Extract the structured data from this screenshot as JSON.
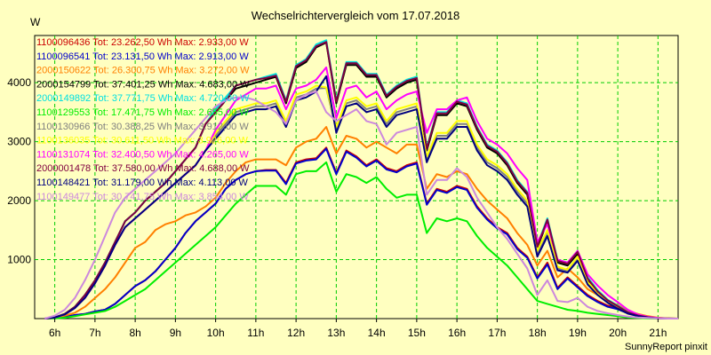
{
  "chart_data": {
    "type": "line",
    "title": "Wechselrichtervergleich vom 17.07.2018",
    "ylabel": "W",
    "footer": "SunnyReport pinxit",
    "xlim": [
      5.5,
      21.5
    ],
    "ylim": [
      0,
      4800
    ],
    "x_ticks": [
      6,
      7,
      8,
      9,
      10,
      11,
      12,
      13,
      14,
      15,
      16,
      17,
      18,
      19,
      20,
      21
    ],
    "x_tick_labels": [
      "6h",
      "7h",
      "8h",
      "9h",
      "10h",
      "11h",
      "12h",
      "13h",
      "14h",
      "15h",
      "16h",
      "17h",
      "18h",
      "19h",
      "20h",
      "21h"
    ],
    "y_ticks": [
      1000,
      2000,
      3000,
      4000
    ],
    "y_tick_labels": [
      "1000",
      "2000",
      "3000",
      "4000"
    ],
    "grid": true,
    "legend_position": "top-left",
    "x": [
      5.75,
      6,
      6.25,
      6.5,
      6.75,
      7,
      7.25,
      7.5,
      7.75,
      8,
      8.25,
      8.5,
      8.75,
      9,
      9.25,
      9.5,
      9.75,
      10,
      10.25,
      10.5,
      10.75,
      11,
      11.25,
      11.5,
      11.75,
      12,
      12.25,
      12.5,
      12.75,
      13,
      13.25,
      13.5,
      13.75,
      14,
      14.25,
      14.5,
      14.75,
      15,
      15.25,
      15.5,
      15.75,
      16,
      16.25,
      16.5,
      16.75,
      17,
      17.25,
      17.5,
      17.75,
      18,
      18.25,
      18.5,
      18.75,
      19,
      19.25,
      19.5,
      19.75,
      20,
      20.25,
      20.5,
      20.75,
      21,
      21.25,
      21.5
    ],
    "series": [
      {
        "name": "1100096436",
        "legend": "1100096436 Tot: 23.262,50 Wh Max: 2.933,00 W",
        "color": "#cc0000",
        "values": [
          0,
          10,
          30,
          60,
          80,
          120,
          150,
          250,
          400,
          550,
          650,
          800,
          1000,
          1200,
          1450,
          1650,
          1800,
          1950,
          2200,
          2350,
          2450,
          2500,
          2520,
          2520,
          2300,
          2650,
          2700,
          2720,
          2900,
          2470,
          2850,
          2750,
          2600,
          2700,
          2550,
          2500,
          2600,
          2650,
          1950,
          2200,
          2150,
          2250,
          2200,
          1900,
          1700,
          1550,
          1450,
          1200,
          1050,
          700,
          950,
          520,
          700,
          550,
          400,
          300,
          220,
          180,
          100,
          60,
          30,
          10,
          5,
          0
        ]
      },
      {
        "name": "1100096541",
        "legend": "1100096541 Tot: 23.131,50 Wh Max: 2.913,00 W",
        "color": "#0000cc",
        "values": [
          0,
          10,
          30,
          60,
          80,
          120,
          150,
          250,
          400,
          550,
          650,
          800,
          1000,
          1200,
          1450,
          1650,
          1800,
          1950,
          2200,
          2350,
          2450,
          2500,
          2510,
          2510,
          2280,
          2630,
          2680,
          2700,
          2880,
          2450,
          2830,
          2730,
          2580,
          2680,
          2530,
          2480,
          2580,
          2630,
          1930,
          2180,
          2130,
          2230,
          2180,
          1880,
          1680,
          1530,
          1430,
          1180,
          1030,
          680,
          920,
          500,
          680,
          530,
          380,
          280,
          200,
          160,
          90,
          50,
          25,
          8,
          4,
          0
        ]
      },
      {
        "name": "2000150622",
        "legend": "2000150622 Tot: 26.300,75 Wh Max: 3.272,00 W",
        "color": "#ff8000",
        "values": [
          0,
          15,
          50,
          100,
          200,
          350,
          500,
          700,
          950,
          1200,
          1300,
          1500,
          1600,
          1650,
          1750,
          1800,
          1900,
          2050,
          2300,
          2500,
          2650,
          2700,
          2700,
          2700,
          2600,
          2900,
          3000,
          3050,
          3250,
          2800,
          3100,
          3050,
          2900,
          3000,
          2900,
          2800,
          2950,
          2950,
          2200,
          2450,
          2400,
          2500,
          2450,
          2200,
          2000,
          1850,
          1700,
          1450,
          1250,
          900,
          1150,
          700,
          850,
          700,
          500,
          400,
          300,
          230,
          130,
          80,
          40,
          15,
          5,
          0
        ]
      },
      {
        "name": "2000154799",
        "legend": "2000154799 Tot: 37.401,25 Wh Max: 4.683,00 W",
        "color": "#000000",
        "values": [
          0,
          20,
          80,
          200,
          400,
          650,
          950,
          1300,
          1650,
          1800,
          2000,
          2150,
          2300,
          2500,
          2700,
          2900,
          3300,
          3500,
          3700,
          3900,
          3950,
          4000,
          4050,
          4100,
          3650,
          4250,
          4350,
          4600,
          4680,
          3650,
          4300,
          4300,
          4100,
          4100,
          3750,
          3900,
          4000,
          4050,
          2850,
          3450,
          3450,
          3650,
          3600,
          3200,
          2900,
          2800,
          2600,
          2300,
          2100,
          1200,
          1650,
          950,
          900,
          1100,
          650,
          450,
          300,
          200,
          100,
          50,
          20,
          5,
          0,
          0
        ]
      },
      {
        "name": "2000149892",
        "legend": "2000149892 Tot: 37.771,75 Wh Max: 4.720,00 W",
        "color": "#00e0e0",
        "values": [
          0,
          20,
          80,
          200,
          400,
          650,
          950,
          1300,
          1650,
          1800,
          2000,
          2150,
          2300,
          2500,
          2700,
          2900,
          3300,
          3550,
          3750,
          3950,
          4000,
          4050,
          4100,
          4150,
          3700,
          4300,
          4400,
          4650,
          4720,
          3700,
          4350,
          4350,
          4150,
          4150,
          3800,
          3950,
          4050,
          4100,
          2900,
          3500,
          3500,
          3700,
          3650,
          3250,
          2950,
          2850,
          2650,
          2350,
          2150,
          1250,
          1700,
          1000,
          950,
          1150,
          700,
          480,
          320,
          220,
          110,
          55,
          25,
          5,
          0,
          0
        ]
      },
      {
        "name": "1100129553",
        "legend": "1100129553 Tot: 17.471,75 Wh Max: 2.655,00 W",
        "color": "#00ee00",
        "values": [
          0,
          5,
          15,
          40,
          70,
          100,
          130,
          200,
          300,
          400,
          500,
          650,
          800,
          950,
          1100,
          1250,
          1400,
          1550,
          1750,
          1950,
          2100,
          2250,
          2250,
          2250,
          2100,
          2450,
          2500,
          2500,
          2650,
          2150,
          2450,
          2400,
          2300,
          2400,
          2200,
          2050,
          2100,
          2100,
          1450,
          1700,
          1650,
          1700,
          1650,
          1400,
          1200,
          1050,
          900,
          700,
          500,
          300,
          250,
          200,
          150,
          130,
          100,
          80,
          60,
          40,
          20,
          10,
          5,
          0,
          0,
          0
        ]
      },
      {
        "name": "1100130966",
        "legend": "1100130966 Tot: 30.388,25 Wh Max: 3.912,00 W",
        "color": "#808080",
        "values": [
          0,
          20,
          70,
          180,
          350,
          600,
          900,
          1250,
          1550,
          1700,
          1850,
          2000,
          2150,
          2300,
          2450,
          2600,
          2850,
          3100,
          3300,
          3500,
          3550,
          3600,
          3600,
          3650,
          3300,
          3750,
          3800,
          3900,
          3910,
          3200,
          3650,
          3700,
          3550,
          3600,
          3300,
          3500,
          3550,
          3600,
          2700,
          3100,
          3100,
          3300,
          3300,
          2900,
          2650,
          2550,
          2400,
          2150,
          1950,
          1100,
          1450,
          850,
          800,
          1000,
          600,
          420,
          280,
          180,
          90,
          45,
          18,
          5,
          0,
          0
        ]
      },
      {
        "name": "1100136035",
        "legend": "1100136035 Tot: 30.611,50 Wh Max: 3.926,00 W",
        "color": "#ffff00",
        "values": [
          0,
          20,
          70,
          180,
          350,
          600,
          900,
          1250,
          1550,
          1700,
          1850,
          2000,
          2150,
          2300,
          2450,
          2600,
          2850,
          3150,
          3350,
          3550,
          3600,
          3650,
          3650,
          3700,
          3350,
          3800,
          3850,
          3950,
          3920,
          3250,
          3700,
          3750,
          3600,
          3650,
          3350,
          3550,
          3600,
          3650,
          2750,
          3150,
          3150,
          3350,
          3350,
          2950,
          2700,
          2600,
          2450,
          2200,
          2000,
          1150,
          1500,
          880,
          830,
          1050,
          620,
          440,
          290,
          190,
          95,
          48,
          20,
          5,
          0,
          0
        ]
      },
      {
        "name": "1100131074",
        "legend": "1100131074 Tot: 32.400,50 Wh Max: 4.265,00 W",
        "color": "#ff00ff",
        "values": [
          0,
          20,
          70,
          180,
          350,
          600,
          900,
          1250,
          1550,
          1700,
          1850,
          2000,
          2150,
          2300,
          2450,
          2600,
          2850,
          3200,
          3450,
          3700,
          3800,
          3900,
          3900,
          3950,
          3550,
          3900,
          3950,
          4050,
          4260,
          3400,
          3900,
          3950,
          3750,
          3850,
          3550,
          3700,
          3800,
          3850,
          3150,
          3550,
          3550,
          3700,
          3750,
          3350,
          3050,
          2950,
          2800,
          2550,
          2350,
          1300,
          1600,
          1000,
          950,
          1150,
          750,
          560,
          400,
          280,
          150,
          70,
          30,
          10,
          0,
          0
        ]
      },
      {
        "name": "2000001478",
        "legend": "2000001478 Tot: 37.580,00 Wh Max: 4.688,00 W",
        "color": "#800040",
        "values": [
          0,
          20,
          80,
          200,
          400,
          650,
          950,
          1300,
          1650,
          1800,
          2000,
          2150,
          2300,
          2500,
          2700,
          2900,
          3300,
          3500,
          3700,
          3950,
          4000,
          4050,
          4080,
          4120,
          3680,
          4280,
          4380,
          4620,
          4690,
          3680,
          4330,
          4330,
          4130,
          4130,
          3780,
          3930,
          4030,
          4080,
          2880,
          3480,
          3480,
          3680,
          3630,
          3230,
          2930,
          2830,
          2630,
          2330,
          2130,
          1220,
          1680,
          980,
          930,
          1130,
          680,
          460,
          310,
          210,
          105,
          52,
          22,
          5,
          0,
          0
        ]
      },
      {
        "name": "1100148421",
        "legend": "1100148421 Tot: 31.179,00 Wh Max: 4.113,00 W",
        "color": "#000080",
        "values": [
          0,
          20,
          70,
          180,
          350,
          600,
          900,
          1250,
          1550,
          1700,
          1850,
          2000,
          2150,
          2300,
          2450,
          2600,
          2850,
          3050,
          3250,
          3450,
          3500,
          3550,
          3550,
          3600,
          3250,
          3700,
          3750,
          3850,
          4110,
          3150,
          3600,
          3650,
          3500,
          3550,
          3250,
          3450,
          3500,
          3550,
          2650,
          3050,
          3050,
          3250,
          3250,
          2850,
          2600,
          2500,
          2350,
          2100,
          1900,
          1050,
          1400,
          820,
          780,
          980,
          580,
          400,
          270,
          170,
          85,
          42,
          16,
          4,
          0,
          0
        ]
      },
      {
        "name": "1100149477",
        "legend": "1100149477 Tot: 30.741,75 Wh Max: 3.854,00 W",
        "color": "#cc88dd",
        "values": [
          0,
          50,
          150,
          350,
          650,
          1000,
          1400,
          1800,
          2050,
          2200,
          2350,
          2500,
          2650,
          2800,
          3000,
          3200,
          3400,
          3600,
          3700,
          3750,
          3750,
          3700,
          3600,
          3500,
          3300,
          3700,
          3800,
          3850,
          3500,
          3350,
          3450,
          3550,
          3350,
          3300,
          2950,
          3150,
          3200,
          3250,
          2100,
          2350,
          2350,
          2550,
          2400,
          2050,
          1800,
          1550,
          1350,
          1100,
          850,
          400,
          650,
          300,
          280,
          350,
          200,
          130,
          90,
          60,
          35,
          20,
          10,
          5,
          0,
          0
        ]
      }
    ]
  }
}
